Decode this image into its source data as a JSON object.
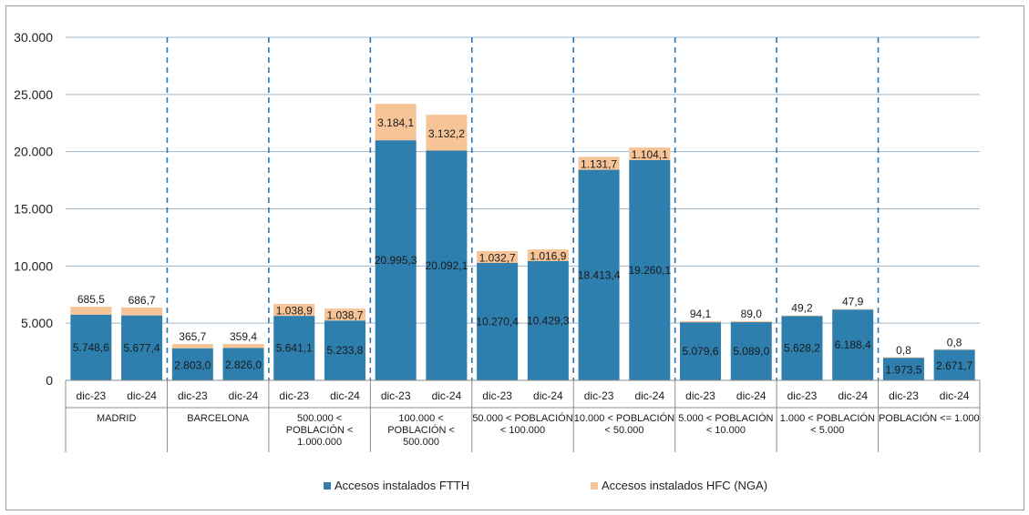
{
  "chart_data": {
    "type": "bar",
    "stacked": true,
    "ylim": [
      0,
      30000
    ],
    "yticks": [
      0,
      5000,
      10000,
      15000,
      20000,
      25000,
      30000
    ],
    "ytick_labels": [
      "0",
      "5.000",
      "10.000",
      "15.000",
      "20.000",
      "25.000",
      "30.000"
    ],
    "groups": [
      {
        "label": "MADRID",
        "bars": [
          {
            "period": "dic-23",
            "ftth": 5748.6,
            "hfc": 685.5,
            "ftth_label": "5.748,6",
            "hfc_label": "685,5"
          },
          {
            "period": "dic-24",
            "ftth": 5677.4,
            "hfc": 686.7,
            "ftth_label": "5.677,4",
            "hfc_label": "686,7"
          }
        ]
      },
      {
        "label": "BARCELONA",
        "bars": [
          {
            "period": "dic-23",
            "ftth": 2803.0,
            "hfc": 365.7,
            "ftth_label": "2.803,0",
            "hfc_label": "365,7"
          },
          {
            "period": "dic-24",
            "ftth": 2826.0,
            "hfc": 359.4,
            "ftth_label": "2.826,0",
            "hfc_label": "359,4"
          }
        ]
      },
      {
        "label": "500.000 < POBLACIÓN < 1.000.000",
        "bars": [
          {
            "period": "dic-23",
            "ftth": 5641.1,
            "hfc": 1038.9,
            "ftth_label": "5.641,1",
            "hfc_label": "1.038,9"
          },
          {
            "period": "dic-24",
            "ftth": 5233.8,
            "hfc": 1038.7,
            "ftth_label": "5.233,8",
            "hfc_label": "1.038,7"
          }
        ]
      },
      {
        "label": "100.000 < POBLACIÓN < 500.000",
        "bars": [
          {
            "period": "dic-23",
            "ftth": 20995.3,
            "hfc": 3184.1,
            "ftth_label": "20.995,3",
            "hfc_label": "3.184,1"
          },
          {
            "period": "dic-24",
            "ftth": 20092.1,
            "hfc": 3132.2,
            "ftth_label": "20.092,1",
            "hfc_label": "3.132,2"
          }
        ]
      },
      {
        "label": "50.000 < POBLACIÓN < 100.000",
        "bars": [
          {
            "period": "dic-23",
            "ftth": 10270.4,
            "hfc": 1032.7,
            "ftth_label": "10.270,4",
            "hfc_label": "1.032,7"
          },
          {
            "period": "dic-24",
            "ftth": 10429.3,
            "hfc": 1016.9,
            "ftth_label": "10.429,3",
            "hfc_label": "1.016,9"
          }
        ]
      },
      {
        "label": "10.000 < POBLACIÓN < 50.000",
        "bars": [
          {
            "period": "dic-23",
            "ftth": 18413.4,
            "hfc": 1131.7,
            "ftth_label": "18.413,4",
            "hfc_label": "1.131,7"
          },
          {
            "period": "dic-24",
            "ftth": 19260.1,
            "hfc": 1104.1,
            "ftth_label": "19.260,1",
            "hfc_label": "1.104,1"
          }
        ]
      },
      {
        "label": "5.000 < POBLACIÓN < 10.000",
        "bars": [
          {
            "period": "dic-23",
            "ftth": 5079.6,
            "hfc": 94.1,
            "ftth_label": "5.079,6",
            "hfc_label": "94,1"
          },
          {
            "period": "dic-24",
            "ftth": 5089.0,
            "hfc": 89.0,
            "ftth_label": "5.089,0",
            "hfc_label": "89,0"
          }
        ]
      },
      {
        "label": "1.000 < POBLACIÓN < 5.000",
        "bars": [
          {
            "period": "dic-23",
            "ftth": 5628.2,
            "hfc": 49.2,
            "ftth_label": "5.628,2",
            "hfc_label": "49,2"
          },
          {
            "period": "dic-24",
            "ftth": 6188.4,
            "hfc": 47.9,
            "ftth_label": "6.188,4",
            "hfc_label": "47,9"
          }
        ]
      },
      {
        "label": "POBLACIÓN <= 1.000",
        "bars": [
          {
            "period": "dic-23",
            "ftth": 1973.5,
            "hfc": 0.8,
            "ftth_label": "1.973,5",
            "hfc_label": "0,8"
          },
          {
            "period": "dic-24",
            "ftth": 2671.7,
            "hfc": 0.8,
            "ftth_label": "2.671,7",
            "hfc_label": "0,8"
          }
        ]
      }
    ],
    "series": [
      {
        "key": "ftth",
        "name": "Accesos instalados FTTH",
        "color": "#2e7fae"
      },
      {
        "key": "hfc",
        "name": "Accesos instalados HFC (NGA)",
        "color": "#f6c496"
      }
    ],
    "colors": {
      "grid": "#9fb6c6",
      "separator": "#2e75b6",
      "axis": "#8c8c8c"
    },
    "legend_position": "bottom"
  }
}
